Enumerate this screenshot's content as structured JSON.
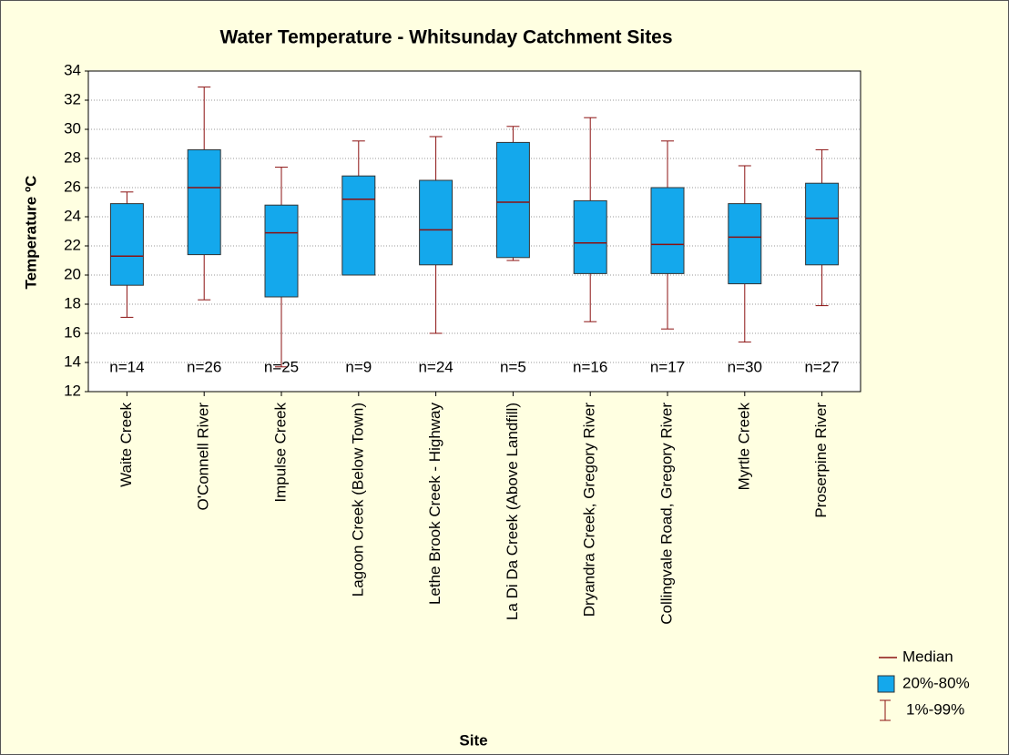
{
  "chart_data": {
    "type": "box",
    "title": "Water Temperature - Whitsunday Catchment Sites",
    "xlabel": "Site",
    "ylabel": "Temperature ºC",
    "categories": [
      "Waite Creek",
      "O'Connell River",
      "Impulse Creek",
      "Lagoon Creek (Below Town)",
      "Lethe Brook Creek - Highway",
      "La Di Da Creek (Above Landfill)",
      "Dryandra Creek, Gregory River",
      "Collingvale Road, Gregory River",
      "Myrtle Creek",
      "Proserpine River"
    ],
    "whisker_low": [
      17.1,
      18.3,
      13.7,
      20.0,
      16.0,
      21.0,
      16.8,
      16.3,
      15.4,
      17.9
    ],
    "box_low": [
      19.3,
      21.4,
      18.5,
      20.0,
      20.7,
      21.2,
      20.1,
      20.1,
      19.4,
      20.7
    ],
    "median": [
      21.3,
      26.0,
      22.9,
      25.2,
      23.1,
      25.0,
      22.2,
      22.1,
      22.6,
      23.9
    ],
    "box_high": [
      24.9,
      28.6,
      24.8,
      26.8,
      26.5,
      29.1,
      25.1,
      26.0,
      24.9,
      26.3
    ],
    "whisker_high": [
      25.7,
      32.9,
      27.4,
      29.2,
      29.5,
      30.2,
      30.8,
      29.2,
      27.5,
      28.6
    ],
    "annotations": [
      "n=14",
      "n=26",
      "n=25",
      "n=9",
      "n=24",
      "n=5",
      "n=16",
      "n=17",
      "n=30",
      "n=27"
    ],
    "legend": {
      "median": "Median",
      "box": "20%-80%",
      "whisker": "1%-99%"
    },
    "box_color": "#14a8ec",
    "whisker_color": "#8b1010",
    "ylim": [
      12,
      34
    ],
    "yticks": [
      12,
      14,
      16,
      18,
      20,
      22,
      24,
      26,
      28,
      30,
      32,
      34
    ],
    "grid": true
  }
}
